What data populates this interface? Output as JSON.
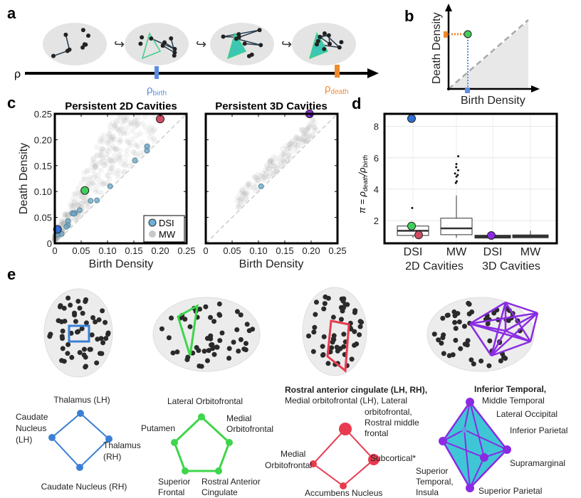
{
  "panels": {
    "a": "a",
    "b": "b",
    "c": "c",
    "d": "d",
    "e": "e"
  },
  "panel_a": {
    "axis_symbol": "ρ",
    "birth_label": "ρ",
    "birth_sub": "birth",
    "death_label": "ρ",
    "death_sub": "death",
    "arrow_glyph": "↪",
    "birth_color": "#5b8de0",
    "death_color": "#ef8a2e"
  },
  "panel_b": {
    "xlabel": "Birth Density",
    "ylabel": "Death Density"
  },
  "chart_data": [
    {
      "type": "scatter",
      "title": "Persistent 2D Cavities",
      "xlabel": "Birth Density",
      "ylabel": "Death Density",
      "xlim": [
        0,
        0.25
      ],
      "ylim": [
        0,
        0.25
      ],
      "xticks": [
        "0",
        "0.05",
        "0.10",
        "0.15",
        "0.20",
        "0.25"
      ],
      "yticks": [
        "0",
        "0.05",
        "0.10",
        "0.15",
        "0.20",
        "0.25"
      ],
      "legend": {
        "placement": "bottom-right",
        "entries": [
          "DSI",
          "MW"
        ]
      },
      "series": [
        {
          "name": "DSI",
          "color": "#6fa8c8",
          "points": [
            [
              0.175,
              0.187
            ],
            [
              0.175,
              0.179
            ],
            [
              0.152,
              0.16
            ],
            [
              0.105,
              0.11
            ],
            [
              0.08,
              0.083
            ],
            [
              0.068,
              0.082
            ],
            [
              0.047,
              0.064
            ],
            [
              0.038,
              0.058
            ],
            [
              0.033,
              0.058
            ],
            [
              0.036,
              0.057
            ],
            [
              0.025,
              0.043
            ],
            [
              0.025,
              0.035
            ],
            [
              0.022,
              0.032
            ],
            [
              0.013,
              0.018
            ],
            [
              0.005,
              0.017
            ]
          ]
        },
        {
          "name": "MW",
          "color": "#bbbbbb"
        }
      ],
      "highlighted": [
        {
          "x": 0.005,
          "y": 0.027,
          "color": "#2f6fd6"
        },
        {
          "x": 0.057,
          "y": 0.102,
          "color": "#3fcf5a"
        },
        {
          "x": 0.2,
          "y": 0.24,
          "color": "#d04a62"
        }
      ]
    },
    {
      "type": "scatter",
      "title": "Persistent 3D Cavities",
      "xlabel": "Birth Density",
      "xlim": [
        0,
        0.25
      ],
      "ylim": [
        0,
        0.25
      ],
      "xticks": [
        "0",
        "0.05",
        "0.10",
        "0.15",
        "0.20",
        "0.25"
      ],
      "series": [
        {
          "name": "DSI",
          "color": "#6fa8c8",
          "points": [
            [
              0.105,
              0.11
            ]
          ]
        },
        {
          "name": "MW",
          "color": "#bbbbbb"
        }
      ],
      "highlighted": [
        {
          "x": 0.197,
          "y": 0.25,
          "color": "#8a2be2"
        }
      ]
    },
    {
      "type": "box",
      "ylabel_main": "π = ρ",
      "ylabel_sub1": "death",
      "ylabel_mid": "/ρ",
      "ylabel_sub2": "birth",
      "ylim": [
        0.55,
        8.8
      ],
      "yticks": [
        2,
        4,
        6,
        8
      ],
      "grid": true,
      "categories": [
        "DSI",
        "MW",
        "DSI",
        "MW"
      ],
      "groups": [
        "2D Cavities",
        "3D Cavities"
      ],
      "boxes": [
        {
          "q1": 1.05,
          "median": 1.35,
          "q3": 1.65,
          "lo": 0.9,
          "hi": 1.7,
          "outliers": [
            2.8,
            8.5
          ]
        },
        {
          "q1": 1.1,
          "median": 1.5,
          "q3": 2.15,
          "lo": 0.9,
          "hi": 3.6,
          "outliers": [
            4.4,
            4.5,
            4.8,
            4.9,
            5.0,
            5.2,
            5.4,
            5.6,
            6.1
          ]
        },
        {
          "q1": 0.98,
          "median": 1.0,
          "q3": 1.02,
          "lo": 0.98,
          "hi": 1.02,
          "outliers": []
        },
        {
          "q1": 0.97,
          "median": 1.0,
          "q3": 1.04,
          "lo": 0.93,
          "hi": 1.35,
          "outliers": []
        }
      ],
      "highlighted": [
        {
          "cat": 0,
          "y": 8.5,
          "color": "#2f6fd6"
        },
        {
          "cat": 0,
          "y": 1.65,
          "color": "#3fcf5a"
        },
        {
          "cat": 0,
          "y": 1.08,
          "color": "#d04a62"
        },
        {
          "cat": 2,
          "y": 1.05,
          "color": "#8a2be2"
        }
      ]
    }
  ],
  "panel_e": {
    "net1": {
      "color": "#3a7fd5",
      "labels": [
        "Thalamus (LH)",
        "Caudate",
        "Nucleus",
        "(LH)",
        "Thalamus",
        "(RH)",
        "Caudate Nucleus (RH)"
      ]
    },
    "net2": {
      "color": "#3ed64b",
      "labels": [
        "Lateral Orbitofrontal",
        "Putamen",
        "Medial",
        "Orbitofrontal",
        "Superior",
        "Frontal",
        "Rostral Anterior",
        "Cingulate"
      ]
    },
    "net3": {
      "color": "#e83b4f",
      "labels": [
        "Rostral anterior cingulate (LH, RH),",
        "Medial orbitofrontal (LH), Lateral",
        "orbitofrontal,",
        "Rostral middle",
        "frontal",
        "Medial",
        "Orbitofrontal",
        "Subcortical*",
        "Accumbens Nucleus"
      ]
    },
    "net4": {
      "color": "#8a2be2",
      "fill": "#3fc6d6",
      "labels": [
        "Inferior Temporal,",
        "Middle Temporal",
        "Lateral Occipital",
        "Inferior Parietal",
        "Supramarginal",
        "Superior Parietal",
        "Superior",
        "Temporal,",
        "Insula"
      ]
    }
  }
}
